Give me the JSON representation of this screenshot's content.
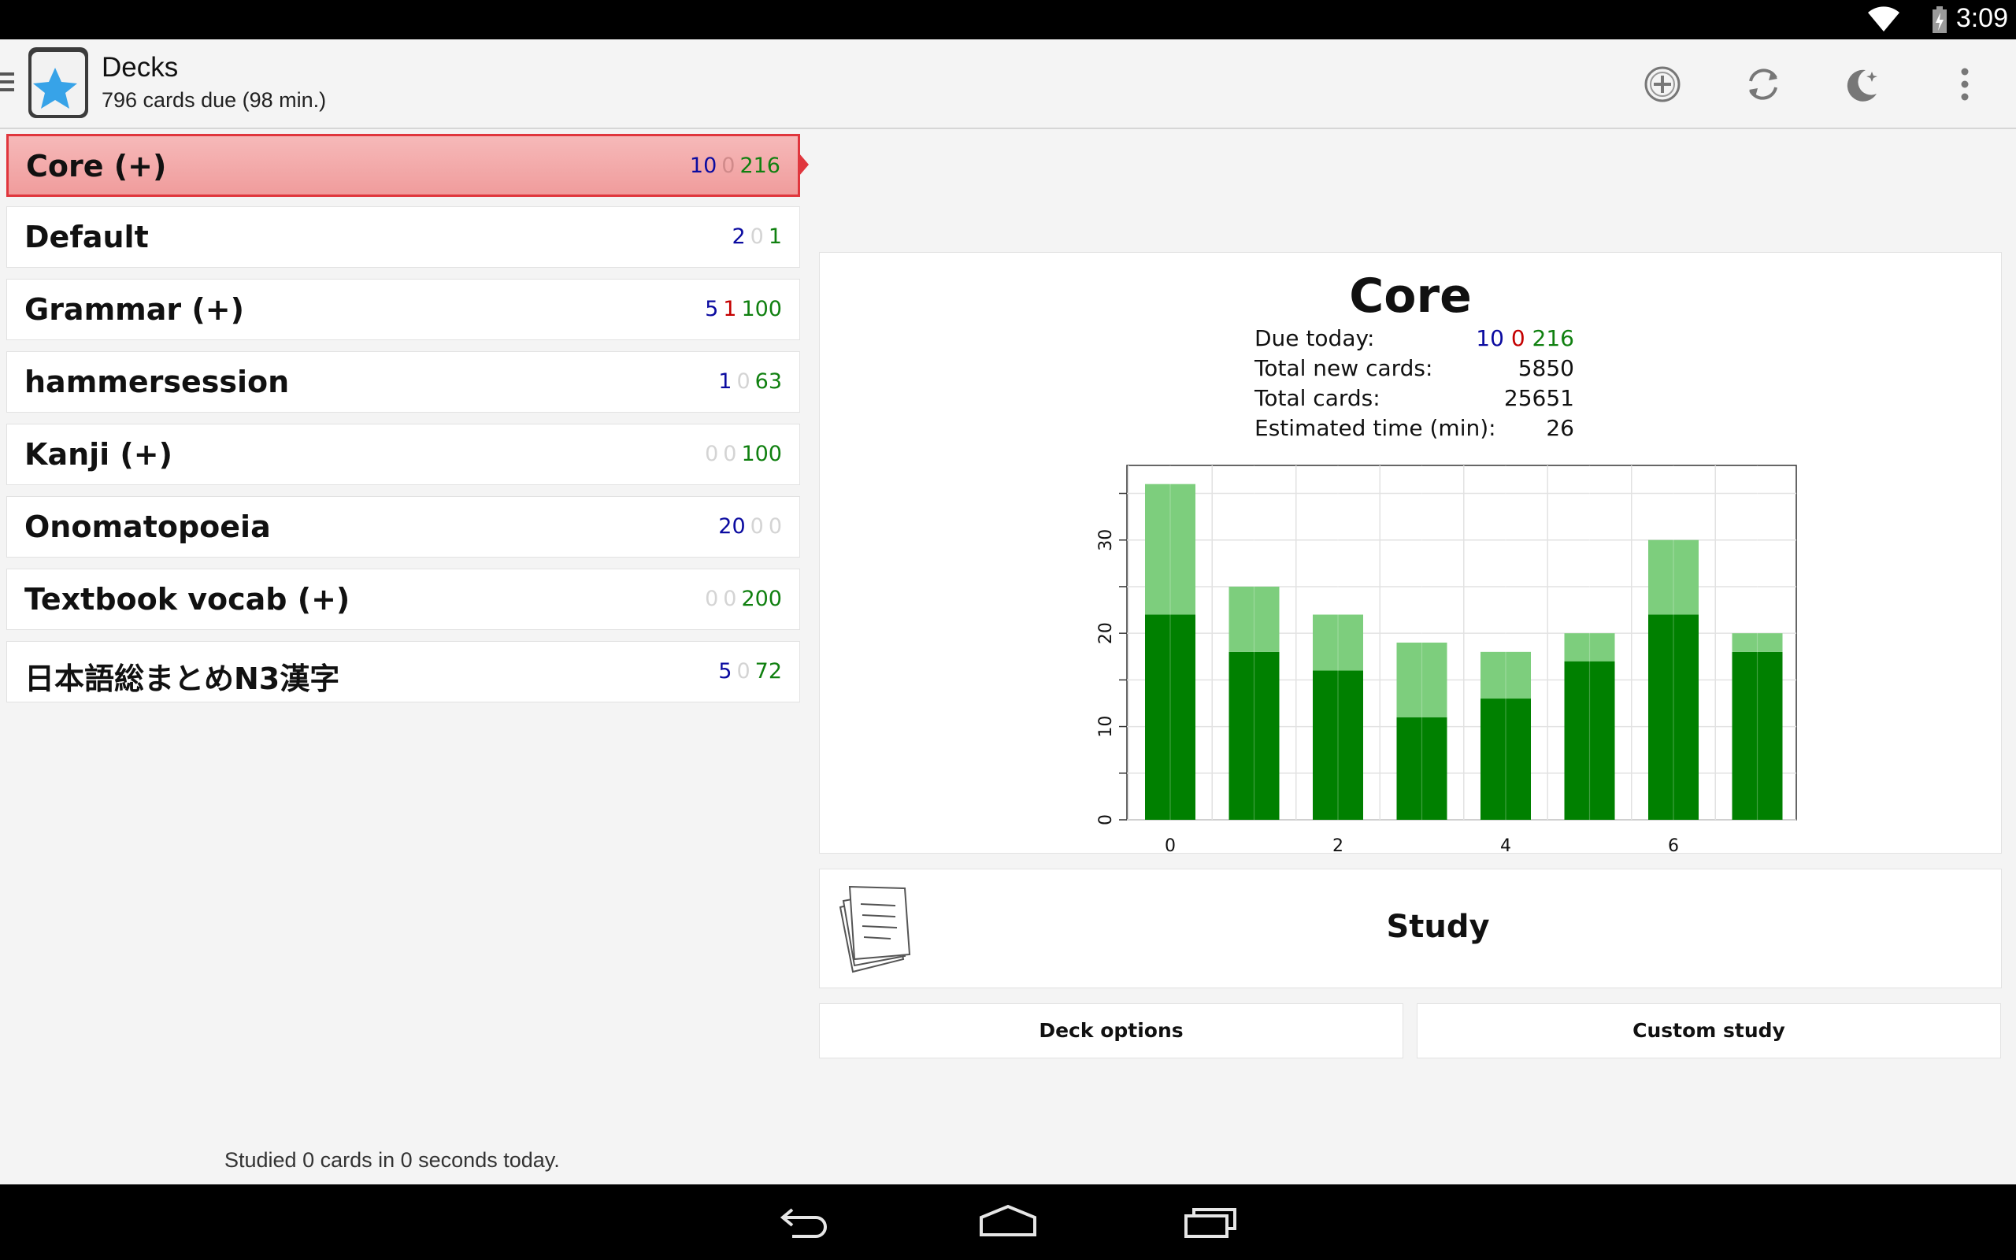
{
  "status_bar": {
    "time": "3:09"
  },
  "header": {
    "title": "Decks",
    "subtitle": "796 cards due (98 min.)",
    "icons": [
      "add-icon",
      "sync-icon",
      "night-mode-icon",
      "overflow-menu-icon"
    ]
  },
  "decks": [
    {
      "name": "Core (+)",
      "new": "10",
      "learn": "0",
      "review": "216",
      "selected": true
    },
    {
      "name": "Default",
      "new": "2",
      "learn": "0",
      "review": "1"
    },
    {
      "name": "Grammar (+)",
      "new": "5",
      "learn": "1",
      "review": "100"
    },
    {
      "name": "hammersession",
      "new": "1",
      "learn": "0",
      "review": "63"
    },
    {
      "name": "Kanji (+)",
      "new": "0",
      "learn": "0",
      "review": "100"
    },
    {
      "name": "Onomatopoeia",
      "new": "20",
      "learn": "0",
      "review": "0"
    },
    {
      "name": "Textbook vocab (+)",
      "new": "0",
      "learn": "0",
      "review": "200"
    },
    {
      "name": "日本語総まとめN3漢字",
      "new": "5",
      "learn": "0",
      "review": "72"
    }
  ],
  "footer": {
    "studied_text": "Studied 0 cards in 0 seconds today."
  },
  "overview": {
    "deck_title": "Core",
    "stats": {
      "due_today_label": "Due today:",
      "due_new": "10",
      "due_learn": "0",
      "due_review": "216",
      "total_new_label": "Total new cards:",
      "total_new_value": "5850",
      "total_cards_label": "Total cards:",
      "total_cards_value": "25651",
      "est_time_label": "Estimated time (min):",
      "est_time_value": "26"
    },
    "study_label": "Study",
    "deck_options_label": "Deck options",
    "custom_study_label": "Custom study"
  },
  "colors": {
    "due_dark_green": "#008000",
    "due_light_green": "#7dce7d",
    "selected_red": "#e0363d",
    "new_blue": "#0b0ba0",
    "learn_red": "#c40000",
    "review_green": "#108010"
  },
  "chart_data": {
    "type": "bar",
    "stacked": true,
    "x": [
      0,
      1,
      2,
      3,
      4,
      5,
      6,
      7
    ],
    "x_tick_labels": [
      "0",
      "2",
      "4",
      "6"
    ],
    "y_tick_labels": [
      "0",
      "10",
      "20",
      "30"
    ],
    "ylim": [
      0,
      38
    ],
    "series": [
      {
        "values": [
          22,
          18,
          16,
          11,
          13,
          17,
          22,
          18
        ],
        "color": "#008000"
      },
      {
        "values": [
          14,
          7,
          6,
          8,
          5,
          3,
          8,
          2
        ],
        "color": "#7dce7d"
      }
    ],
    "grid": true
  }
}
